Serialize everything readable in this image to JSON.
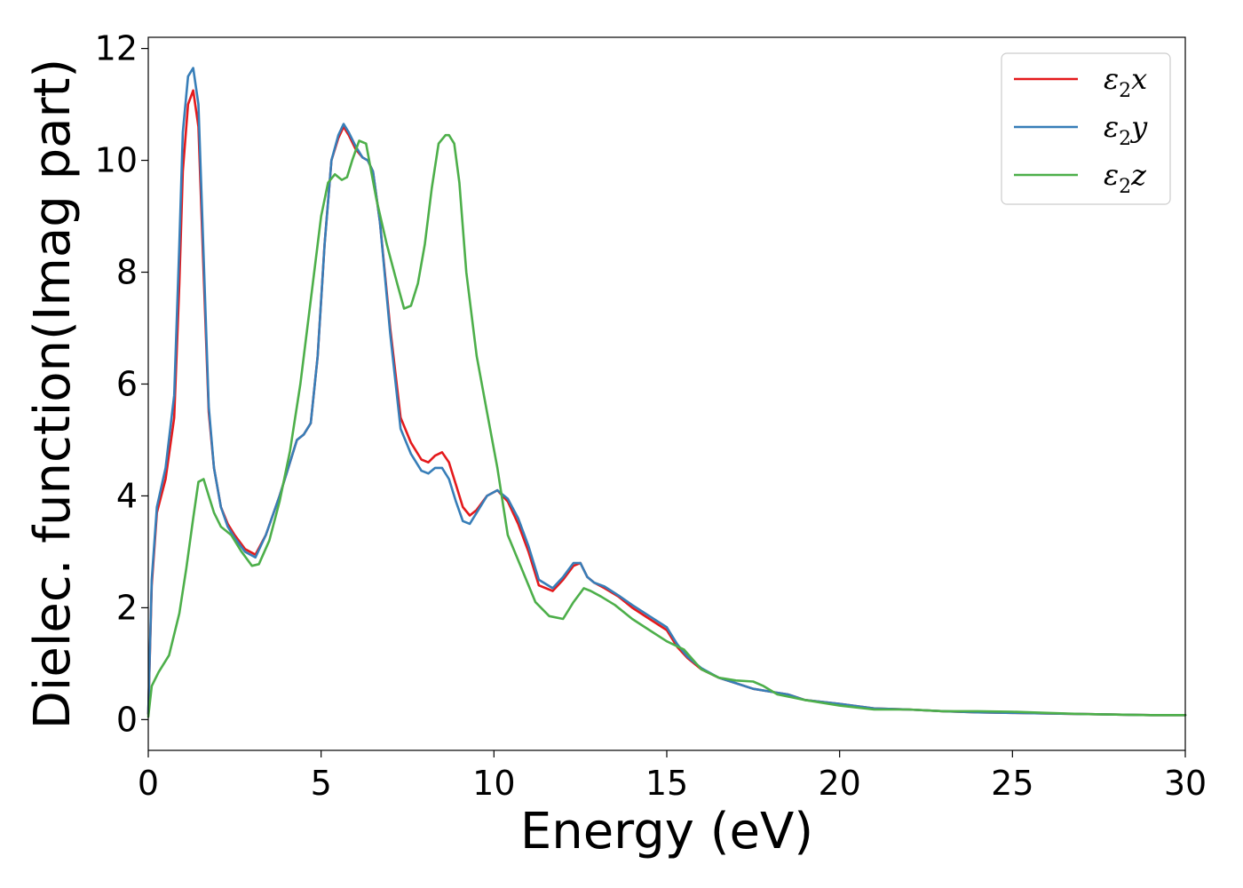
{
  "chart_data": {
    "type": "line",
    "xlabel": "Energy (eV)",
    "ylabel": "Dielec. function(Imag part)",
    "xlim": [
      0,
      30
    ],
    "ylim": [
      -0.55,
      12.2
    ],
    "xticks": [
      0,
      5,
      10,
      15,
      20,
      25,
      30
    ],
    "xtick_labels": [
      "0",
      "5",
      "10",
      "15",
      "20",
      "25",
      "30"
    ],
    "yticks": [
      0,
      2,
      4,
      6,
      8,
      10,
      12
    ],
    "ytick_labels": [
      "0",
      "2",
      "4",
      "6",
      "8",
      "10",
      "12"
    ],
    "grid": false,
    "legend_position": "top-right",
    "series": [
      {
        "name": "ε2x",
        "legend_base": "ε",
        "legend_sub": "2",
        "legend_tail": "x",
        "color": "#e41a1c",
        "x": [
          0,
          0.1,
          0.25,
          0.5,
          0.75,
          0.9,
          1.0,
          1.15,
          1.3,
          1.45,
          1.6,
          1.75,
          1.9,
          2.1,
          2.3,
          2.5,
          2.8,
          3.1,
          3.4,
          3.8,
          4.1,
          4.3,
          4.5,
          4.7,
          4.9,
          5.1,
          5.3,
          5.5,
          5.65,
          5.8,
          6.0,
          6.2,
          6.35,
          6.5,
          6.7,
          7.0,
          7.3,
          7.6,
          7.9,
          8.1,
          8.3,
          8.5,
          8.7,
          8.9,
          9.1,
          9.3,
          9.5,
          9.8,
          10.1,
          10.4,
          10.7,
          11.0,
          11.3,
          11.7,
          12.0,
          12.3,
          12.5,
          12.7,
          12.9,
          13.2,
          13.6,
          14.0,
          14.5,
          15.0,
          15.3,
          15.6,
          16.0,
          16.5,
          17.0,
          17.5,
          18.0,
          18.5,
          19.0,
          20.0,
          21.0,
          22.0,
          23.0,
          24.0,
          25.0,
          26.0,
          27.0,
          28.0,
          29.0,
          30.0
        ],
        "values": [
          0.1,
          2.4,
          3.7,
          4.3,
          5.4,
          7.8,
          9.8,
          11.0,
          11.25,
          10.6,
          8.0,
          5.5,
          4.5,
          3.8,
          3.5,
          3.3,
          3.05,
          2.95,
          3.3,
          4.0,
          4.6,
          5.0,
          5.1,
          5.3,
          6.5,
          8.5,
          10.0,
          10.4,
          10.6,
          10.45,
          10.2,
          10.05,
          10.0,
          9.8,
          8.9,
          7.0,
          5.4,
          4.95,
          4.65,
          4.6,
          4.72,
          4.78,
          4.6,
          4.2,
          3.8,
          3.65,
          3.75,
          4.0,
          4.1,
          3.9,
          3.5,
          3.0,
          2.4,
          2.3,
          2.5,
          2.75,
          2.8,
          2.55,
          2.45,
          2.35,
          2.2,
          2.0,
          1.8,
          1.6,
          1.3,
          1.1,
          0.9,
          0.75,
          0.65,
          0.55,
          0.5,
          0.45,
          0.35,
          0.28,
          0.2,
          0.18,
          0.15,
          0.13,
          0.12,
          0.11,
          0.1,
          0.09,
          0.08,
          0.08
        ]
      },
      {
        "name": "ε2y",
        "legend_base": "ε",
        "legend_sub": "2",
        "legend_tail": "y",
        "color": "#377eb8",
        "x": [
          0,
          0.1,
          0.25,
          0.5,
          0.75,
          0.9,
          1.0,
          1.15,
          1.3,
          1.45,
          1.6,
          1.75,
          1.9,
          2.1,
          2.3,
          2.5,
          2.8,
          3.1,
          3.4,
          3.8,
          4.1,
          4.3,
          4.5,
          4.7,
          4.9,
          5.1,
          5.3,
          5.5,
          5.65,
          5.8,
          6.0,
          6.2,
          6.35,
          6.5,
          6.7,
          7.0,
          7.3,
          7.6,
          7.9,
          8.1,
          8.3,
          8.5,
          8.7,
          8.9,
          9.1,
          9.3,
          9.5,
          9.8,
          10.1,
          10.4,
          10.7,
          11.0,
          11.3,
          11.7,
          12.0,
          12.3,
          12.5,
          12.7,
          12.9,
          13.2,
          13.6,
          14.0,
          14.5,
          15.0,
          15.3,
          15.6,
          16.0,
          16.5,
          17.0,
          17.5,
          18.0,
          18.5,
          19.0,
          20.0,
          21.0,
          22.0,
          23.0,
          24.0,
          25.0,
          26.0,
          27.0,
          28.0,
          29.0,
          30.0
        ],
        "values": [
          0.1,
          2.5,
          3.8,
          4.5,
          5.8,
          8.5,
          10.5,
          11.5,
          11.65,
          11.0,
          8.3,
          5.6,
          4.5,
          3.8,
          3.45,
          3.25,
          3.0,
          2.9,
          3.3,
          4.0,
          4.6,
          5.0,
          5.1,
          5.3,
          6.5,
          8.5,
          10.0,
          10.45,
          10.65,
          10.5,
          10.25,
          10.05,
          10.0,
          9.8,
          8.9,
          6.9,
          5.2,
          4.75,
          4.45,
          4.4,
          4.5,
          4.5,
          4.3,
          3.9,
          3.55,
          3.5,
          3.7,
          4.0,
          4.1,
          3.95,
          3.6,
          3.1,
          2.5,
          2.35,
          2.55,
          2.8,
          2.8,
          2.55,
          2.45,
          2.38,
          2.22,
          2.05,
          1.85,
          1.65,
          1.35,
          1.12,
          0.92,
          0.75,
          0.65,
          0.55,
          0.5,
          0.45,
          0.35,
          0.28,
          0.2,
          0.18,
          0.15,
          0.13,
          0.12,
          0.11,
          0.1,
          0.09,
          0.08,
          0.08
        ]
      },
      {
        "name": "ε2z",
        "legend_base": "ε",
        "legend_sub": "2",
        "legend_tail": "z",
        "color": "#4daf4a",
        "x": [
          0,
          0.1,
          0.3,
          0.6,
          0.9,
          1.1,
          1.3,
          1.45,
          1.6,
          1.75,
          1.9,
          2.1,
          2.4,
          2.7,
          3.0,
          3.2,
          3.5,
          3.8,
          4.1,
          4.4,
          4.7,
          5.0,
          5.2,
          5.4,
          5.6,
          5.75,
          5.9,
          6.1,
          6.3,
          6.6,
          6.9,
          7.2,
          7.4,
          7.6,
          7.8,
          8.0,
          8.2,
          8.4,
          8.6,
          8.7,
          8.85,
          9.0,
          9.2,
          9.5,
          9.8,
          10.1,
          10.4,
          10.8,
          11.2,
          11.6,
          12.0,
          12.3,
          12.6,
          12.8,
          13.1,
          13.5,
          14.0,
          14.5,
          15.0,
          15.5,
          16.0,
          16.5,
          17.0,
          17.5,
          17.8,
          18.2,
          19.0,
          20.0,
          21.0,
          22.0,
          23.0,
          24.0,
          25.0,
          26.0,
          27.0,
          28.0,
          29.0,
          30.0
        ],
        "values": [
          0.05,
          0.6,
          0.85,
          1.15,
          1.9,
          2.7,
          3.6,
          4.25,
          4.3,
          4.0,
          3.7,
          3.45,
          3.3,
          3.0,
          2.75,
          2.78,
          3.2,
          3.9,
          4.8,
          6.0,
          7.5,
          9.0,
          9.6,
          9.75,
          9.65,
          9.7,
          10.0,
          10.35,
          10.3,
          9.3,
          8.5,
          7.8,
          7.35,
          7.4,
          7.8,
          8.5,
          9.5,
          10.3,
          10.45,
          10.45,
          10.3,
          9.6,
          8.0,
          6.5,
          5.5,
          4.5,
          3.3,
          2.7,
          2.1,
          1.85,
          1.8,
          2.1,
          2.35,
          2.3,
          2.2,
          2.05,
          1.8,
          1.6,
          1.4,
          1.25,
          0.9,
          0.75,
          0.7,
          0.68,
          0.6,
          0.45,
          0.35,
          0.25,
          0.18,
          0.18,
          0.15,
          0.15,
          0.14,
          0.12,
          0.1,
          0.09,
          0.08,
          0.08
        ]
      }
    ]
  }
}
